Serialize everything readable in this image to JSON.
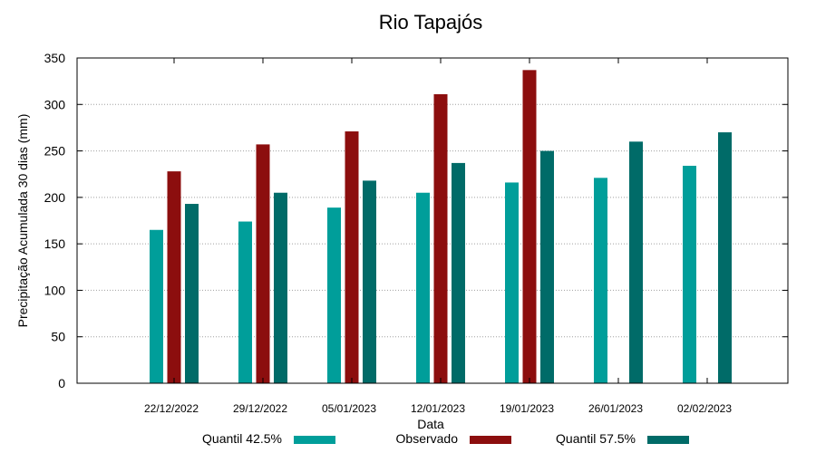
{
  "chart_data": {
    "type": "bar",
    "title": "Rio Tapajós",
    "xlabel": "Data",
    "ylabel": "Precipitação Acumulada 30 dias (mm)",
    "ylim": [
      0,
      350
    ],
    "yticks": [
      0,
      50,
      100,
      150,
      200,
      250,
      300,
      350
    ],
    "grid": true,
    "legend_position": "bottom",
    "categories": [
      "22/12/2022",
      "29/12/2022",
      "05/01/2023",
      "12/01/2023",
      "19/01/2023",
      "26/01/2023",
      "02/02/2023"
    ],
    "series": [
      {
        "name": "Quantil 42.5%",
        "color": "#009e9a",
        "values": [
          165,
          174,
          189,
          205,
          216,
          221,
          234
        ]
      },
      {
        "name": "Observado",
        "color": "#8c0e0e",
        "values": [
          228,
          257,
          271,
          311,
          337,
          null,
          null
        ]
      },
      {
        "name": "Quantil 57.5%",
        "color": "#006b68",
        "values": [
          193,
          205,
          218,
          237,
          250,
          260,
          270
        ]
      }
    ]
  }
}
